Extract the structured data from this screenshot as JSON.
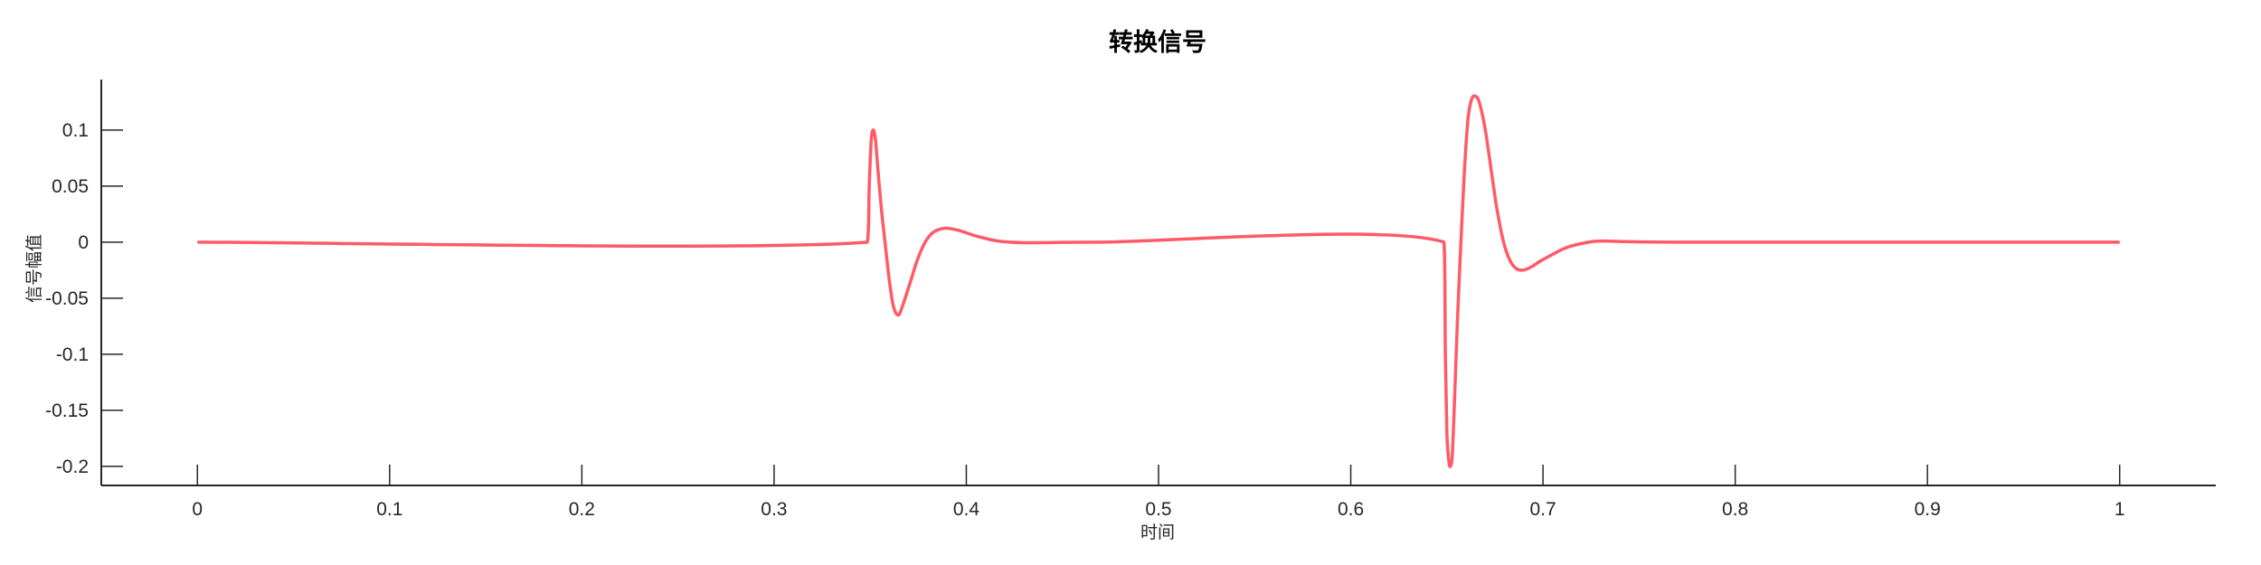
{
  "chart_data": {
    "type": "line",
    "title": "转换信号",
    "xlabel": "时间",
    "ylabel": "信号幅值",
    "xlim": [
      -0.05,
      1.05
    ],
    "ylim": [
      -0.217,
      0.145
    ],
    "xticks": [
      0,
      0.1,
      0.2,
      0.3,
      0.4,
      0.5,
      0.6,
      0.7,
      0.8,
      0.9,
      1
    ],
    "xtick_labels": [
      "0",
      "0.1",
      "0.2",
      "0.3",
      "0.4",
      "0.5",
      "0.6",
      "0.7",
      "0.8",
      "0.9",
      "1"
    ],
    "yticks": [
      0.1,
      0.05,
      0,
      -0.05,
      -0.1,
      -0.15,
      -0.2
    ],
    "ytick_labels": [
      "0.1",
      "0.05",
      "0",
      "-0.05",
      "-0.1",
      "-0.15",
      "-0.2"
    ],
    "grid": false,
    "box": false,
    "series": [
      {
        "color": "#ff5a66",
        "x": [
          0,
          0.3485,
          0.3495,
          0.3505,
          0.3515,
          0.3527,
          0.354,
          0.3558,
          0.3577,
          0.36,
          0.3622,
          0.3647,
          0.367,
          0.371,
          0.3745,
          0.3786,
          0.383,
          0.389,
          0.396,
          0.4055,
          0.4166,
          0.4292,
          0.445,
          0.47,
          0.6485,
          0.6492,
          0.65,
          0.651,
          0.6518,
          0.6528,
          0.654,
          0.6555,
          0.6573,
          0.659,
          0.661,
          0.663,
          0.665,
          0.667,
          0.67,
          0.673,
          0.676,
          0.6795,
          0.683,
          0.6865,
          0.6901,
          0.694,
          0.6985,
          0.7039,
          0.71,
          0.7164,
          0.7274,
          0.743,
          0.77,
          1
        ],
        "y": [
          0,
          0,
          0.05,
          0.09,
          0.1,
          0.092,
          0.065,
          0.03,
          0,
          -0.035,
          -0.058,
          -0.065,
          -0.056,
          -0.035,
          -0.016,
          0,
          0.009,
          0.0124,
          0.0105,
          0.0053,
          0.001,
          -0.0005,
          -0.0003,
          0,
          0,
          -0.1,
          -0.17,
          -0.195,
          -0.2,
          -0.19,
          -0.14,
          -0.07,
          0,
          0.06,
          0.11,
          0.128,
          0.13,
          0.124,
          0.1,
          0.065,
          0.03,
          0,
          -0.017,
          -0.024,
          -0.0248,
          -0.022,
          -0.017,
          -0.012,
          -0.0065,
          -0.0027,
          0.0008,
          0.0005,
          0,
          0
        ]
      }
    ]
  }
}
